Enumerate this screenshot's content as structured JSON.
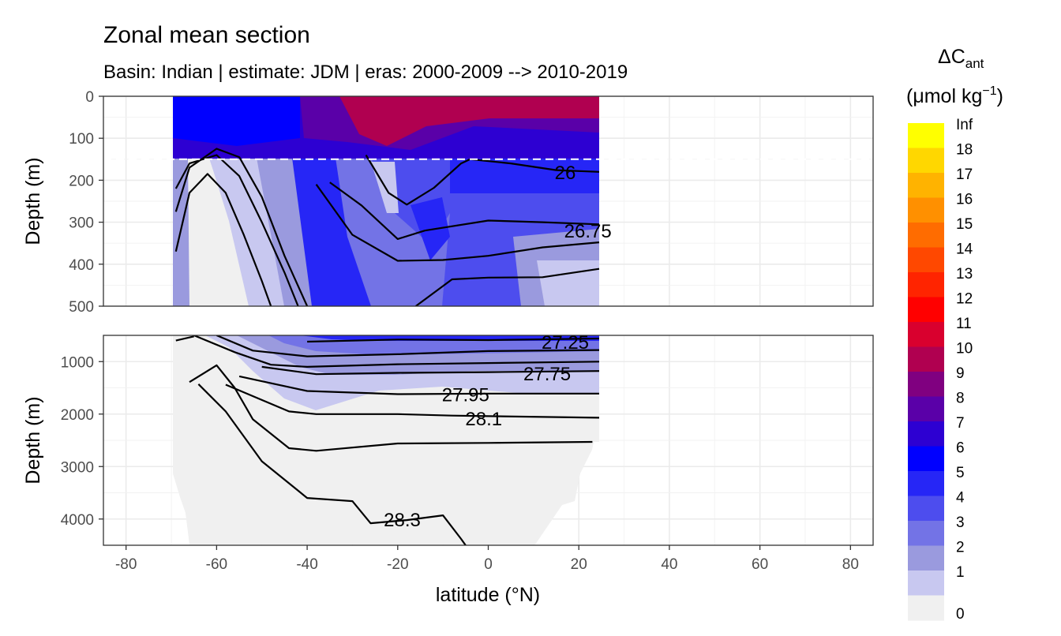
{
  "chart_data": {
    "type": "heatmap",
    "title": "Zonal mean section",
    "subtitle": "Basin: Indian | estimate: JDM  | eras: 2000-2009 --> 2010-2019",
    "xlabel": "latitude (°N)",
    "ylabel": "Depth (m)",
    "xlim": [
      -85,
      85
    ],
    "x_ticks": [
      -80,
      -60,
      -40,
      -20,
      0,
      20,
      40,
      60,
      80
    ],
    "data_lat_range": [
      -69.5,
      24.5
    ],
    "legend": {
      "title_main": "ΔC",
      "title_sub": "ant",
      "unit_text": "(μmol kg",
      "unit_sup": "−1",
      "unit_close": ")",
      "position": "right",
      "labels": [
        "Inf",
        "18",
        "17",
        "16",
        "15",
        "14",
        "13",
        "12",
        "11",
        "10",
        "9",
        "8",
        "7",
        "6",
        "5",
        "4",
        "3",
        "2",
        "1",
        "0"
      ],
      "colors": [
        "#ffff00",
        "#ffd700",
        "#ffb300",
        "#ff9000",
        "#ff6c00",
        "#ff4800",
        "#ff2400",
        "#ff0000",
        "#d9002e",
        "#b00050",
        "#800080",
        "#5a00a8",
        "#2d00d2",
        "#0000ff",
        "#2626f6",
        "#4d4dee",
        "#7373e6",
        "#9a9ade",
        "#c8c8f0",
        "#f0f0f0"
      ]
    },
    "panels": [
      {
        "name": "upper",
        "ylim": [
          500,
          0
        ],
        "y_ticks": [
          0,
          100,
          200,
          300,
          400,
          500
        ],
        "reference_depth": 150,
        "contours": [
          {
            "label": "26",
            "label_at": [
              17,
              180
            ],
            "points": [
              [
                -4,
                150
              ],
              [
                5,
                160
              ],
              [
                15,
                176
              ],
              [
                24.5,
                180
              ]
            ]
          },
          {
            "label": "26.75",
            "label_at": [
              22,
              320
            ],
            "points": [
              [
                -14,
                320
              ],
              [
                0,
                296
              ],
              [
                12,
                300
              ],
              [
                24.5,
                305
              ]
            ]
          },
          {
            "label": "",
            "points": [
              [
                -27,
                140
              ],
              [
                -22,
                230
              ],
              [
                -18,
                258
              ],
              [
                -12,
                218
              ],
              [
                -6,
                160
              ],
              [
                -4,
                150
              ]
            ]
          },
          {
            "label": "",
            "points": [
              [
                -35,
                205
              ],
              [
                -28,
                260
              ],
              [
                -20,
                340
              ],
              [
                -14,
                320
              ]
            ]
          },
          {
            "label": "",
            "points": [
              [
                -38,
                210
              ],
              [
                -30,
                330
              ],
              [
                -20,
                392
              ],
              [
                -10,
                390
              ],
              [
                0,
                380
              ],
              [
                12,
                360
              ],
              [
                24.5,
                348
              ]
            ]
          },
          {
            "label": "",
            "points": [
              [
                -16,
                500
              ],
              [
                -8,
                436
              ],
              [
                0,
                432
              ],
              [
                12,
                431
              ],
              [
                24.5,
                411
              ]
            ]
          },
          {
            "label": "",
            "points": [
              [
                -69,
                220
              ],
              [
                -66,
                160
              ],
              [
                -60,
                140
              ],
              [
                -55,
                190
              ],
              [
                -50,
                300
              ],
              [
                -45,
                420
              ],
              [
                -42,
                500
              ]
            ]
          },
          {
            "label": "",
            "points": [
              [
                -69,
                370
              ],
              [
                -66,
                230
              ],
              [
                -62,
                185
              ],
              [
                -58,
                230
              ],
              [
                -54,
                330
              ],
              [
                -50,
                440
              ],
              [
                -48,
                500
              ]
            ]
          },
          {
            "label": "",
            "points": [
              [
                -69,
                275
              ],
              [
                -66,
                170
              ],
              [
                -60,
                125
              ],
              [
                -55,
                145
              ],
              [
                -50,
                240
              ],
              [
                -45,
                380
              ],
              [
                -40,
                500
              ]
            ]
          }
        ]
      },
      {
        "name": "lower",
        "ylim": [
          4500,
          500
        ],
        "y_ticks": [
          1000,
          2000,
          3000,
          4000
        ],
        "contours": [
          {
            "label": "27.25",
            "label_at": [
              17,
              620
            ],
            "points": [
              [
                -40,
                620
              ],
              [
                -20,
                580
              ],
              [
                0,
                590
              ],
              [
                24.5,
                560
              ]
            ]
          },
          {
            "label": "27.75",
            "label_at": [
              13,
              1220
            ],
            "points": [
              [
                -50,
                1100
              ],
              [
                -38,
                1240
              ],
              [
                -20,
                1215
              ],
              [
                0,
                1200
              ],
              [
                24.5,
                1180
              ]
            ]
          },
          {
            "label": "27.95",
            "label_at": [
              -5,
              1620
            ],
            "points": [
              [
                -55,
                1280
              ],
              [
                -40,
                1560
              ],
              [
                -20,
                1620
              ],
              [
                0,
                1610
              ],
              [
                24.5,
                1610
              ]
            ]
          },
          {
            "label": "28.1",
            "label_at": [
              -1,
              2080
            ],
            "points": [
              [
                -58,
                1440
              ],
              [
                -44,
                1950
              ],
              [
                -38,
                2000
              ],
              [
                -20,
                2000
              ],
              [
                -8,
                2030
              ],
              [
                0,
                2040
              ],
              [
                24.5,
                2070
              ]
            ]
          },
          {
            "label": "28.3",
            "label_at": [
              -19,
              4000
            ],
            "points": [
              [
                -64,
                1430
              ],
              [
                -58,
                1950
              ],
              [
                -50,
                2900
              ],
              [
                -40,
                3600
              ],
              [
                -30,
                3660
              ],
              [
                -26,
                4080
              ],
              [
                -18,
                4020
              ],
              [
                -10,
                3930
              ],
              [
                -6,
                4380
              ],
              [
                -5,
                4500
              ]
            ]
          },
          {
            "label": "",
            "points": [
              [
                -60,
                500
              ],
              [
                -52,
                790
              ],
              [
                -40,
                900
              ],
              [
                -20,
                860
              ],
              [
                0,
                800
              ],
              [
                24.5,
                780
              ]
            ]
          },
          {
            "label": "",
            "points": [
              [
                -65,
                500
              ],
              [
                -56,
                820
              ],
              [
                -48,
                1060
              ],
              [
                -40,
                1100
              ],
              [
                -20,
                1050
              ],
              [
                24.5,
                1000
              ]
            ]
          },
          {
            "label": "",
            "points": [
              [
                -69,
                600
              ],
              [
                -65,
                520
              ]
            ]
          },
          {
            "label": "",
            "points": [
              [
                -66,
                1390
              ],
              [
                -60,
                1070
              ],
              [
                -56,
                1500
              ],
              [
                -52,
                2100
              ],
              [
                -44,
                2650
              ],
              [
                -38,
                2700
              ],
              [
                -20,
                2560
              ],
              [
                0,
                2550
              ],
              [
                23,
                2530
              ]
            ]
          }
        ]
      }
    ]
  }
}
